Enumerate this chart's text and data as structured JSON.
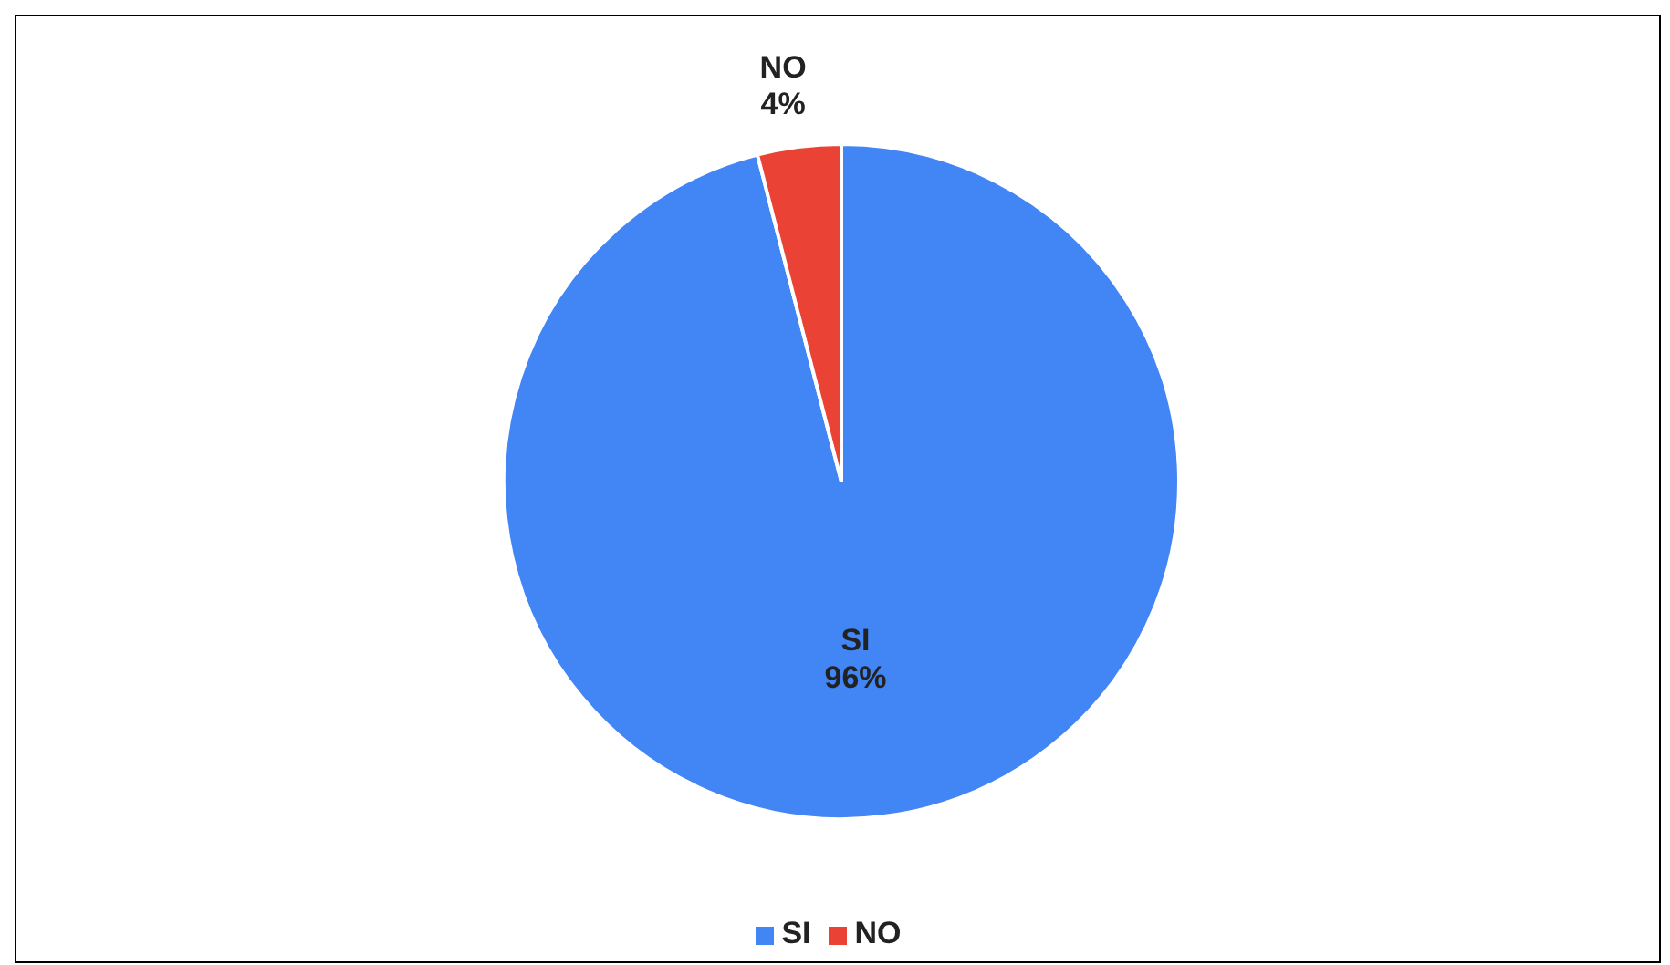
{
  "chart_data": {
    "type": "pie",
    "categories": [
      "SI",
      "NO"
    ],
    "values": [
      96,
      4
    ],
    "colors": [
      "#4285f4",
      "#ea4335"
    ],
    "value_labels": [
      "96%",
      "4%"
    ],
    "legend": "bottom"
  }
}
